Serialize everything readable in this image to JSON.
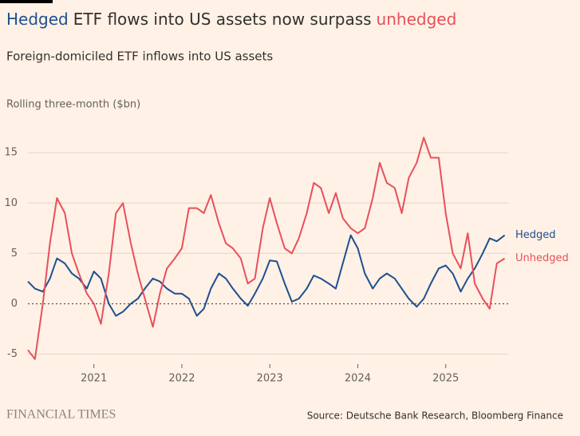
{
  "chart_data": {
    "type": "line",
    "title_parts": [
      "Hedged",
      "ETF flows into US assets now surpass",
      "unhedged"
    ],
    "subtitle": "Foreign-domiciled ETF inflows into US assets",
    "y_label": "Rolling three-month ($bn)",
    "source": "Source: Deutsche Bank Research, Bloomberg Finance",
    "brand": "FINANCIAL TIMES",
    "x": [
      2020.25,
      2020.33,
      2020.42,
      2020.5,
      2020.58,
      2020.67,
      2020.75,
      2020.83,
      2020.92,
      2021.0,
      2021.08,
      2021.17,
      2021.25,
      2021.33,
      2021.42,
      2021.5,
      2021.58,
      2021.67,
      2021.75,
      2021.83,
      2021.92,
      2022.0,
      2022.08,
      2022.17,
      2022.25,
      2022.33,
      2022.42,
      2022.5,
      2022.58,
      2022.67,
      2022.75,
      2022.83,
      2022.92,
      2023.0,
      2023.08,
      2023.17,
      2023.25,
      2023.33,
      2023.42,
      2023.5,
      2023.58,
      2023.67,
      2023.75,
      2023.83,
      2023.92,
      2024.0,
      2024.08,
      2024.17,
      2024.25,
      2024.33,
      2024.42,
      2024.5,
      2024.58,
      2024.67,
      2024.75,
      2024.83,
      2024.92,
      2025.0,
      2025.08,
      2025.17,
      2025.25,
      2025.33,
      2025.42,
      2025.5,
      2025.58,
      2025.67
    ],
    "series": [
      {
        "name": "Hedged",
        "color": "#1f4f8f",
        "values": [
          2.2,
          1.5,
          1.2,
          2.5,
          4.5,
          4.0,
          3.0,
          2.5,
          1.5,
          3.2,
          2.5,
          0,
          -1.2,
          -0.8,
          0,
          0.5,
          1.5,
          2.5,
          2.2,
          1.5,
          1.0,
          1.0,
          0.5,
          -1.2,
          -0.5,
          1.5,
          3.0,
          2.5,
          1.5,
          0.5,
          -0.2,
          1.0,
          2.5,
          4.3,
          4.2,
          2.0,
          0.2,
          0.5,
          1.5,
          2.8,
          2.5,
          2.0,
          1.5,
          4.0,
          6.8,
          5.5,
          3.0,
          1.5,
          2.5,
          3.0,
          2.5,
          1.5,
          0.5,
          -0.3,
          0.5,
          2.0,
          3.5,
          3.8,
          3.0,
          1.2,
          2.5,
          3.5,
          5.0,
          6.5,
          6.2,
          6.8
        ]
      },
      {
        "name": "Unhedged",
        "color": "#e8505b",
        "values": [
          -4.6,
          -5.5,
          0,
          6.0,
          10.5,
          9.0,
          5.0,
          3.0,
          1.0,
          0,
          -2.0,
          3.0,
          9.0,
          10.0,
          6.0,
          3.0,
          0.5,
          -2.3,
          1.0,
          3.5,
          4.5,
          5.5,
          9.5,
          9.5,
          9.0,
          10.8,
          8.0,
          6.0,
          5.5,
          4.5,
          2.0,
          2.5,
          7.5,
          10.5,
          8.0,
          5.5,
          5.0,
          6.5,
          9.0,
          12.0,
          11.5,
          9.0,
          11.0,
          8.5,
          7.5,
          7.0,
          7.5,
          10.5,
          14.0,
          12.0,
          11.5,
          9.0,
          12.5,
          14.0,
          16.5,
          14.5,
          14.5,
          9.0,
          5.0,
          3.5,
          7.0,
          2.0,
          0.5,
          -0.5,
          4.0,
          4.5
        ]
      }
    ],
    "xlim": [
      2020.25,
      2025.71
    ],
    "xticks": [
      2021,
      2022,
      2023,
      2024,
      2025
    ],
    "ylim": [
      -6,
      17
    ],
    "yticks": [
      -5,
      0,
      5,
      10,
      15
    ],
    "grid": true
  }
}
